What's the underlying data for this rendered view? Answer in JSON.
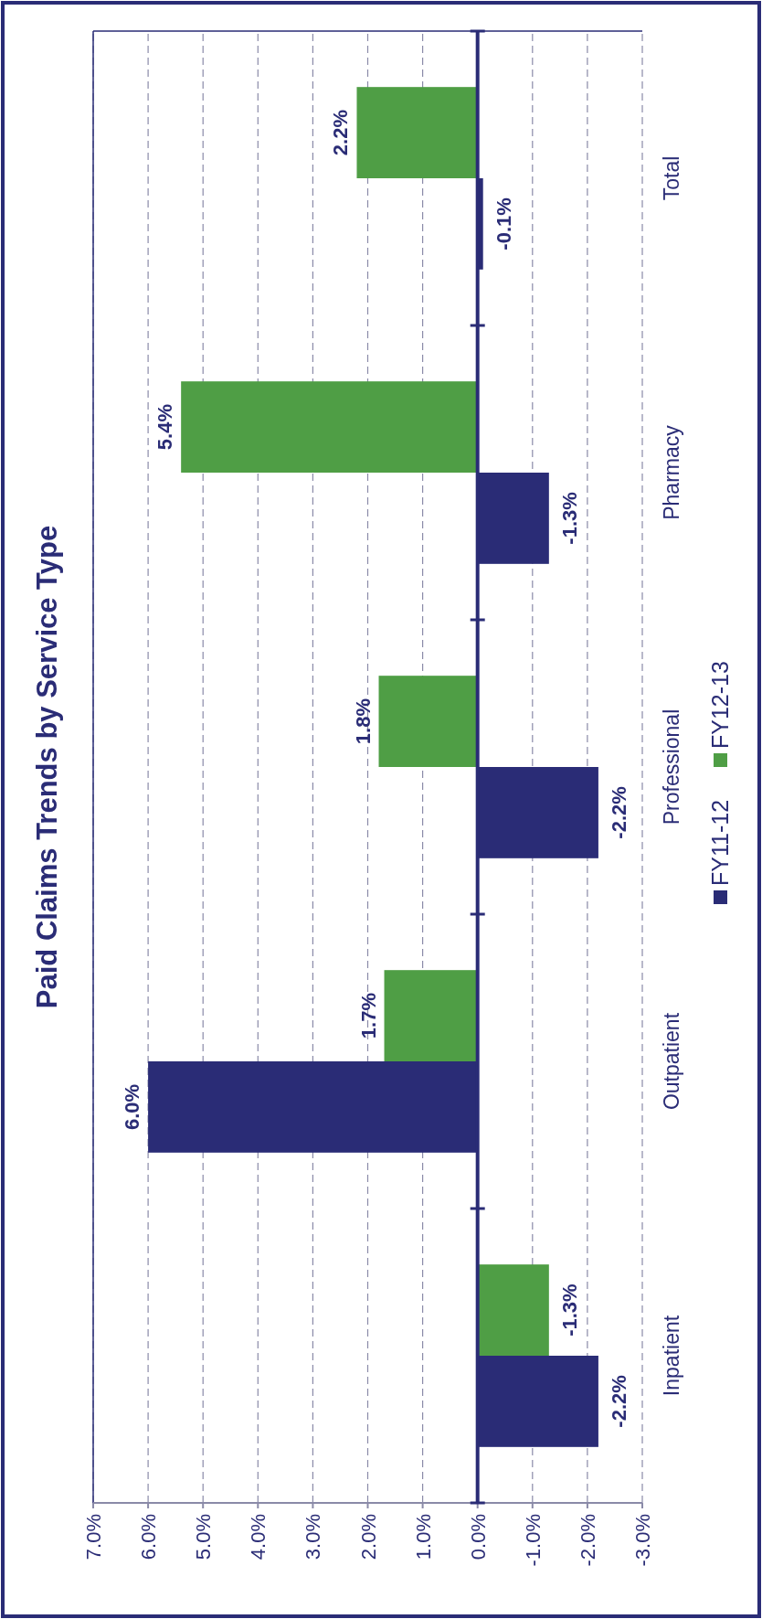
{
  "chart_data": {
    "type": "bar",
    "orientation": "horizontal",
    "title": "Paid Claims Trends by Service Type",
    "categories": [
      "Total",
      "Pharmacy",
      "Professional",
      "Outpatient",
      "Inpatient"
    ],
    "series": [
      {
        "name": "FY11-12",
        "color": "#2a2c76",
        "values": [
          -0.1,
          -1.3,
          -2.2,
          6.0,
          -2.2
        ]
      },
      {
        "name": "FY12-13",
        "color": "#4f9e45",
        "values": [
          2.2,
          5.4,
          1.8,
          1.7,
          -1.3
        ]
      }
    ],
    "xlim": [
      7,
      -3
    ],
    "xticks": [
      {
        "value": 7,
        "label": "7.0%"
      },
      {
        "value": 6,
        "label": "6.0%"
      },
      {
        "value": 5,
        "label": "5.0%"
      },
      {
        "value": 4,
        "label": "4.0%"
      },
      {
        "value": 3,
        "label": "3.0%"
      },
      {
        "value": 2,
        "label": "2.0%"
      },
      {
        "value": 1,
        "label": "1.0%"
      },
      {
        "value": 0,
        "label": "0.0%"
      },
      {
        "value": -1,
        "label": "-1.0%"
      },
      {
        "value": -2,
        "label": "-2.0%"
      },
      {
        "value": -3,
        "label": "-3.0%"
      }
    ],
    "value_labels": [
      [
        "-0.1%",
        "-1.3%",
        "-2.2%",
        "6.0%",
        "-2.2%"
      ],
      [
        "2.2%",
        "5.4%",
        "1.8%",
        "1.7%",
        "-1.3%"
      ]
    ],
    "ref_lines": [
      {
        "axis": "x",
        "value": 0,
        "color": "#2a2c76"
      }
    ],
    "grid": "x",
    "legend": "right"
  }
}
